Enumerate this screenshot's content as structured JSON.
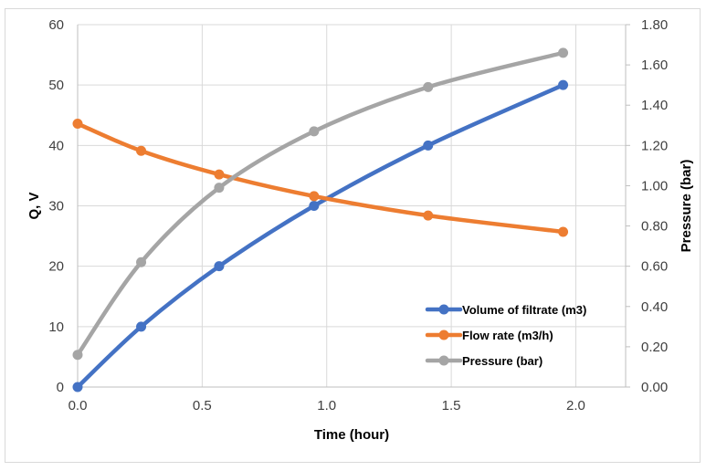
{
  "chart_data": {
    "type": "line",
    "title": "",
    "xlabel": "Time (hour)",
    "ylabel": "Q, V",
    "y2label": "Pressure (bar)",
    "xlim": [
      0,
      2.2
    ],
    "ylim": [
      0,
      60
    ],
    "y2lim": [
      0,
      1.8
    ],
    "x_ticks": [
      0.0,
      0.5,
      1.0,
      1.5,
      2.0
    ],
    "x_tick_labels": [
      "0.0",
      "0.5",
      "1.0",
      "1.5",
      "2.0"
    ],
    "y_ticks": [
      0,
      10,
      20,
      30,
      40,
      50,
      60
    ],
    "y_tick_labels": [
      "0",
      "10",
      "20",
      "30",
      "40",
      "50",
      "60"
    ],
    "y2_ticks": [
      0,
      0.2,
      0.4,
      0.6,
      0.8,
      1.0,
      1.2,
      1.4,
      1.6,
      1.8
    ],
    "y2_tick_labels": [
      "0.00",
      "0.20",
      "0.40",
      "0.60",
      "0.80",
      "1.00",
      "1.20",
      "1.40",
      "1.60",
      "1.80"
    ],
    "grid": true,
    "legend_position": "bottom-right",
    "series": [
      {
        "name": "Volume of filtrate (m3)",
        "axis": "primary",
        "color": "#4472C4",
        "x": [
          0.0,
          0.255,
          0.568,
          0.949,
          1.407,
          1.949
        ],
        "y": [
          0,
          10,
          20,
          30,
          40,
          50
        ]
      },
      {
        "name": "Flow rate (m3/h)",
        "axis": "primary",
        "color": "#ED7D31",
        "x": [
          0.0,
          0.255,
          0.568,
          0.949,
          1.407,
          1.949
        ],
        "y": [
          43.6,
          39.1,
          35.2,
          31.6,
          28.4,
          25.7
        ]
      },
      {
        "name": "Pressure (bar)",
        "axis": "secondary",
        "color": "#A5A5A5",
        "x": [
          0.0,
          0.255,
          0.568,
          0.949,
          1.407,
          1.949
        ],
        "y": [
          0.16,
          0.62,
          0.99,
          1.27,
          1.49,
          1.66
        ]
      }
    ]
  }
}
